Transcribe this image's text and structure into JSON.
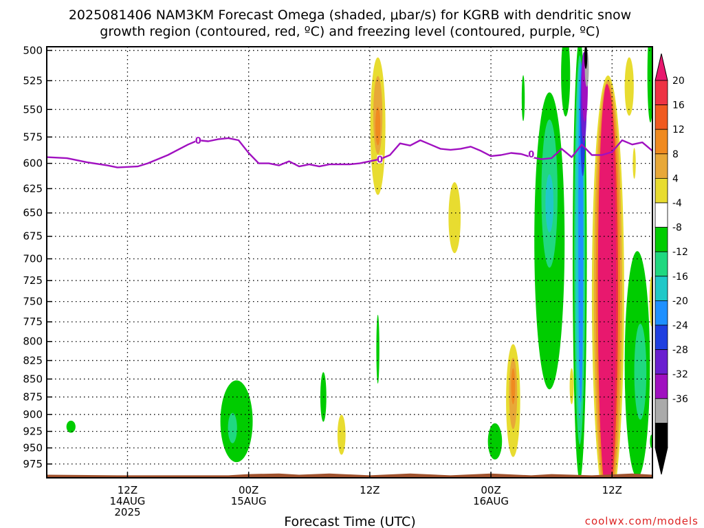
{
  "chart_data": {
    "type": "heatmap",
    "title_line1": "2025081406 NAM3KM Forecast Omega (shaded, μbar/s) for KGRB with dendritic snow",
    "title_line2": "growth region (contoured, red, ºC) and freezing level (contoured, purple, ºC)",
    "xlabel": "Forecast Time (UTC)",
    "credit": "coolwx.com/models",
    "y_axis": {
      "scale": "log",
      "reversed": true,
      "ticks": [
        500,
        525,
        550,
        575,
        600,
        625,
        650,
        675,
        700,
        725,
        750,
        775,
        800,
        825,
        850,
        875,
        900,
        925,
        950,
        975
      ],
      "ylim": [
        497,
        997
      ]
    },
    "x_axis": {
      "xlim_hours": [
        -2,
        58
      ],
      "ticks": [
        {
          "hour": 6,
          "line1": "12Z",
          "line2": "14AUG",
          "line3": "2025"
        },
        {
          "hour": 18,
          "line1": "00Z",
          "line2": "15AUG",
          "line3": ""
        },
        {
          "hour": 30,
          "line1": "12Z",
          "line2": "",
          "line3": ""
        },
        {
          "hour": 42,
          "line1": "00Z",
          "line2": "16AUG",
          "line3": ""
        },
        {
          "hour": 54,
          "line1": "12Z",
          "line2": "",
          "line3": ""
        }
      ]
    },
    "grid": true,
    "colorbar": {
      "labels": [
        "20",
        "16",
        "12",
        "8",
        "4",
        "-4",
        "-8",
        "-12",
        "-16",
        "-20",
        "-24",
        "-28",
        "-32",
        "-36"
      ],
      "colors": [
        "#ee3344",
        "#f05a20",
        "#f08a20",
        "#e8a838",
        "#e8dc30",
        "#ffffff",
        "#00cc00",
        "#20d880",
        "#20c8c8",
        "#1e90ff",
        "#1f3fe0",
        "#6a1fd0",
        "#a010c0",
        "#aaaaaa",
        "#000000"
      ],
      "top_arrow_color": "#e8186e",
      "bottom_arrow_color": "#000000"
    },
    "colors": {
      "pink": "#e8186e",
      "red": "#ee3344",
      "orange": "#f08a20",
      "tan": "#e8a838",
      "yellow": "#e8dc30",
      "green": "#00cc00",
      "teal": "#20d880",
      "cyan": "#20c8c8",
      "blue": "#1e90ff",
      "darkblue": "#1f3fe0",
      "purple": "#6a1fd0",
      "violet": "#a010c0",
      "gray": "#aaaaaa",
      "black": "#000000",
      "terrain": "#a0522d",
      "freezing": "#a010c0"
    },
    "freezing_level": {
      "series": [
        [
          -2,
          594
        ],
        [
          0,
          595
        ],
        [
          2,
          599
        ],
        [
          4,
          602
        ],
        [
          5,
          604
        ],
        [
          7,
          603
        ],
        [
          8,
          600
        ],
        [
          10,
          592
        ],
        [
          12,
          582
        ],
        [
          13,
          578
        ],
        [
          14,
          579
        ],
        [
          15,
          577
        ],
        [
          16,
          576
        ],
        [
          17,
          578
        ],
        [
          18,
          590
        ],
        [
          19,
          600
        ],
        [
          20,
          600
        ],
        [
          21,
          602
        ],
        [
          22,
          598
        ],
        [
          23,
          603
        ],
        [
          24,
          601
        ],
        [
          25,
          603
        ],
        [
          26,
          601
        ],
        [
          28,
          601
        ],
        [
          29,
          600
        ],
        [
          30,
          598
        ],
        [
          31,
          596
        ],
        [
          32,
          592
        ],
        [
          33,
          581
        ],
        [
          34,
          583
        ],
        [
          35,
          578
        ],
        [
          36,
          582
        ],
        [
          37,
          586
        ],
        [
          38,
          587
        ],
        [
          39,
          586
        ],
        [
          40,
          584
        ],
        [
          41,
          588
        ],
        [
          42,
          593
        ],
        [
          43,
          592
        ],
        [
          44,
          590
        ],
        [
          45,
          591
        ],
        [
          46,
          594
        ],
        [
          47,
          596
        ],
        [
          48,
          595
        ],
        [
          49,
          586
        ],
        [
          50,
          594
        ],
        [
          51,
          582
        ],
        [
          52,
          592
        ],
        [
          53,
          592
        ],
        [
          54,
          589
        ],
        [
          55,
          578
        ],
        [
          56,
          582
        ],
        [
          57,
          580
        ],
        [
          58,
          588
        ]
      ],
      "labels": [
        {
          "hour": 13,
          "p": 578,
          "text": "0"
        },
        {
          "hour": 31,
          "p": 596,
          "text": "0"
        },
        {
          "hour": 46,
          "p": 591,
          "text": "0"
        }
      ]
    },
    "omega_features": [
      {
        "color": "green",
        "t": 0.4,
        "p": 918,
        "w": 0.9,
        "h": 18
      },
      {
        "color": "green",
        "t": 16.8,
        "p": 910,
        "w": 3.2,
        "h": 120
      },
      {
        "color": "teal",
        "t": 16.4,
        "p": 920,
        "w": 0.9,
        "h": 45
      },
      {
        "color": "green",
        "t": 25.4,
        "p": 875,
        "w": 0.6,
        "h": 70
      },
      {
        "color": "yellow",
        "t": 27.2,
        "p": 930,
        "w": 0.8,
        "h": 60
      },
      {
        "color": "yellow",
        "t": 30.8,
        "p": 565,
        "w": 1.5,
        "h": 125
      },
      {
        "color": "tan",
        "t": 30.8,
        "p": 555,
        "w": 0.9,
        "h": 70
      },
      {
        "color": "orange",
        "t": 30.8,
        "p": 565,
        "w": 0.5,
        "h": 35
      },
      {
        "color": "green",
        "t": 30.8,
        "p": 810,
        "w": 0.3,
        "h": 90
      },
      {
        "color": "yellow",
        "t": 38.4,
        "p": 655,
        "w": 1.2,
        "h": 75
      },
      {
        "color": "green",
        "t": 42.4,
        "p": 940,
        "w": 1.4,
        "h": 55
      },
      {
        "color": "yellow",
        "t": 44.2,
        "p": 880,
        "w": 1.4,
        "h": 160
      },
      {
        "color": "tan",
        "t": 44.2,
        "p": 870,
        "w": 0.8,
        "h": 100
      },
      {
        "color": "orange",
        "t": 44.2,
        "p": 860,
        "w": 0.4,
        "h": 50
      },
      {
        "color": "green",
        "t": 45.2,
        "p": 540,
        "w": 0.3,
        "h": 40
      },
      {
        "color": "green",
        "t": 47.8,
        "p": 680,
        "w": 3.0,
        "h": 320
      },
      {
        "color": "teal",
        "t": 47.8,
        "p": 630,
        "w": 1.6,
        "h": 150
      },
      {
        "color": "cyan",
        "t": 47.8,
        "p": 640,
        "w": 0.8,
        "h": 60
      },
      {
        "color": "green",
        "t": 49.4,
        "p": 520,
        "w": 0.9,
        "h": 70
      },
      {
        "color": "yellow",
        "t": 50.0,
        "p": 860,
        "w": 0.4,
        "h": 50
      },
      {
        "color": "green",
        "t": 50.8,
        "p": 700,
        "w": 1.4,
        "h": 480
      },
      {
        "color": "teal",
        "t": 50.8,
        "p": 690,
        "w": 1.1,
        "h": 420
      },
      {
        "color": "cyan",
        "t": 50.8,
        "p": 680,
        "w": 0.8,
        "h": 380
      },
      {
        "color": "blue",
        "t": 50.9,
        "p": 670,
        "w": 0.5,
        "h": 360
      },
      {
        "color": "darkblue",
        "t": 51.1,
        "p": 560,
        "w": 0.5,
        "h": 100
      },
      {
        "color": "purple",
        "t": 51.2,
        "p": 540,
        "w": 0.6,
        "h": 80
      },
      {
        "color": "violet",
        "t": 51.3,
        "p": 530,
        "w": 0.6,
        "h": 60
      },
      {
        "color": "gray",
        "t": 51.5,
        "p": 515,
        "w": 0.4,
        "h": 30
      },
      {
        "color": "black",
        "t": 51.4,
        "p": 505,
        "w": 0.3,
        "h": 20
      },
      {
        "color": "yellow",
        "t": 53.6,
        "p": 740,
        "w": 3.2,
        "h": 500
      },
      {
        "color": "tan",
        "t": 53.6,
        "p": 740,
        "w": 2.8,
        "h": 490
      },
      {
        "color": "orange",
        "t": 53.6,
        "p": 740,
        "w": 2.4,
        "h": 480
      },
      {
        "color": "red",
        "t": 53.6,
        "p": 740,
        "w": 2.0,
        "h": 475
      },
      {
        "color": "pink",
        "t": 53.5,
        "p": 735,
        "w": 1.8,
        "h": 470
      },
      {
        "color": "yellow",
        "t": 55.7,
        "p": 530,
        "w": 0.9,
        "h": 50
      },
      {
        "color": "yellow",
        "t": 56.2,
        "p": 600,
        "w": 0.3,
        "h": 30
      },
      {
        "color": "green",
        "t": 56.5,
        "p": 830,
        "w": 2.5,
        "h": 300
      },
      {
        "color": "teal",
        "t": 56.8,
        "p": 840,
        "w": 1.2,
        "h": 130
      },
      {
        "color": "green",
        "t": 57.8,
        "p": 520,
        "w": 0.6,
        "h": 80
      },
      {
        "color": "yellow",
        "t": 57.9,
        "p": 750,
        "w": 0.4,
        "h": 60
      },
      {
        "color": "green",
        "t": 57.9,
        "p": 940,
        "w": 0.3,
        "h": 20
      }
    ],
    "terrain": {
      "series": [
        [
          -2,
          992
        ],
        [
          5,
          993
        ],
        [
          10,
          993
        ],
        [
          16,
          993
        ],
        [
          18,
          991
        ],
        [
          21,
          990
        ],
        [
          23,
          992
        ],
        [
          26,
          990
        ],
        [
          30,
          993
        ],
        [
          34,
          990
        ],
        [
          38,
          993
        ],
        [
          42,
          990
        ],
        [
          46,
          993
        ],
        [
          48,
          991
        ],
        [
          52,
          993
        ],
        [
          56,
          990
        ],
        [
          58,
          992
        ]
      ],
      "bottom": 997
    }
  }
}
